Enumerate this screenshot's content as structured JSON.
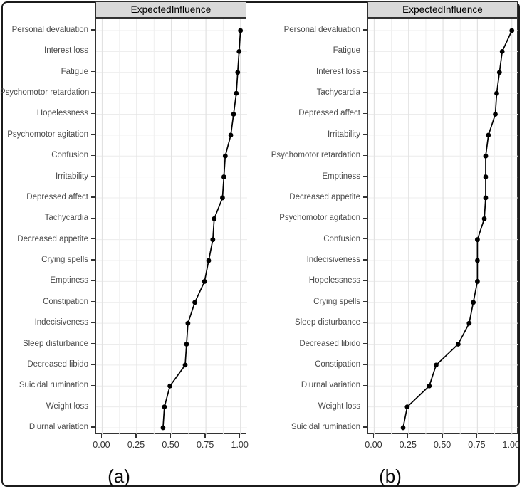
{
  "figure": {
    "captions": {
      "a": "(a)",
      "b": "(b)"
    },
    "background": "#ffffff",
    "border_color": "#1b1b1b"
  },
  "styles": {
    "strip_bg": "#d9d9d9",
    "strip_border": "#2f2f2f",
    "panel_border": "#333333",
    "grid_major": "#e2e2e2",
    "grid_minor": "#efefef",
    "grid_row": "#ececec",
    "axis_text": "#333333",
    "label_text": "#4a4a4a",
    "point_color": "#000000",
    "line_color": "#000000"
  },
  "chart_data": [
    {
      "type": "line",
      "panel": "a",
      "title": "ExpectedInfluence",
      "orientation": "horizontal-dot-line",
      "grid": true,
      "xlim": [
        0,
        1
      ],
      "x_tick_values": [
        0,
        0.25,
        0.5,
        0.75,
        1
      ],
      "x_tick_labels": [
        "0.00",
        "0.25",
        "0.50",
        "0.75",
        "1.00"
      ],
      "categories": [
        "Personal devaluation",
        "Interest loss",
        "Fatigue",
        "Psychomotor retardation",
        "Hopelessness",
        "Psychomotor agitation",
        "Confusion",
        "Irritability",
        "Depressed affect",
        "Tachycardia",
        "Decreased appetite",
        "Crying spells",
        "Emptiness",
        "Constipation",
        "Indecisiveness",
        "Sleep disturbance",
        "Decreased libido",
        "Suicidal rumination",
        "Weight loss",
        "Diurnal variation"
      ],
      "values": [
        1.0,
        0.99,
        0.98,
        0.97,
        0.95,
        0.93,
        0.89,
        0.88,
        0.87,
        0.81,
        0.8,
        0.77,
        0.74,
        0.67,
        0.62,
        0.61,
        0.6,
        0.49,
        0.45,
        0.44
      ]
    },
    {
      "type": "line",
      "panel": "b",
      "title": "ExpectedInfluence",
      "orientation": "horizontal-dot-line",
      "grid": true,
      "xlim": [
        0,
        1
      ],
      "x_tick_values": [
        0,
        0.25,
        0.5,
        0.75,
        1
      ],
      "x_tick_labels": [
        "0.00",
        "0.25",
        "0.50",
        "0.75",
        "1.00"
      ],
      "categories": [
        "Personal devaluation",
        "Fatigue",
        "Interest loss",
        "Tachycardia",
        "Depressed affect",
        "Irritability",
        "Psychomotor retardation",
        "Emptiness",
        "Decreased appetite",
        "Psychomotor agitation",
        "Confusion",
        "Indecisiveness",
        "Hopelessness",
        "Crying spells",
        "Sleep disturbance",
        "Decreased libido",
        "Constipation",
        "Diurnal variation",
        "Weight loss",
        "Suicidal rumination"
      ],
      "values": [
        1.0,
        0.93,
        0.91,
        0.89,
        0.88,
        0.83,
        0.81,
        0.81,
        0.81,
        0.8,
        0.75,
        0.75,
        0.75,
        0.72,
        0.69,
        0.61,
        0.45,
        0.4,
        0.24,
        0.21
      ]
    }
  ]
}
